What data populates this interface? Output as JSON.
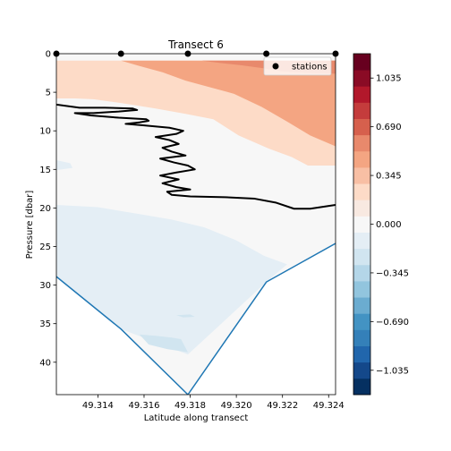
{
  "chart_data": {
    "type": "contour",
    "title": "Transect 6",
    "xlabel": "Latitude along transect",
    "ylabel": "Pressure [dbar]",
    "xlim": [
      49.3122,
      49.3243
    ],
    "ylim": [
      44.2,
      0
    ],
    "x_ticks": [
      49.314,
      49.316,
      49.318,
      49.32,
      49.322,
      49.324
    ],
    "x_tick_labels": [
      "49.314",
      "49.316",
      "49.318",
      "49.320",
      "49.322",
      "49.324"
    ],
    "y_ticks": [
      0,
      5,
      10,
      15,
      20,
      25,
      30,
      35,
      40
    ],
    "y_tick_labels": [
      "0",
      "5",
      "10",
      "15",
      "20",
      "25",
      "30",
      "35",
      "40"
    ],
    "grid": false,
    "legend": {
      "position": "top-right",
      "entries": [
        {
          "label": "stations",
          "marker": "circle",
          "color": "#000000"
        }
      ]
    },
    "colorbar": {
      "vmin": -1.2075,
      "vmax": 1.2075,
      "levels": 21,
      "tick_values": [
        1.035,
        0.69,
        0.345,
        0.0,
        -0.345,
        -0.69,
        -1.035
      ],
      "tick_labels": [
        "1.035",
        "0.690",
        "0.345",
        "0.000",
        "−0.345",
        "−0.690",
        "−1.035"
      ],
      "colormap": [
        "#053061",
        "#14488a",
        "#2166ac",
        "#3480b9",
        "#4393c3",
        "#6bacd0",
        "#92c5de",
        "#b4d6e8",
        "#d1e5f0",
        "#e4eef5",
        "#f7f7f7",
        "#f8e9e1",
        "#fddbc7",
        "#f8bfa4",
        "#f4a582",
        "#e8896c",
        "#d6604d",
        "#c43c3c",
        "#b2182b",
        "#8a0b25",
        "#67001f"
      ]
    },
    "stations": [
      {
        "x": 49.3122,
        "y": 0
      },
      {
        "x": 49.315,
        "y": 0
      },
      {
        "x": 49.3179,
        "y": 0
      },
      {
        "x": 49.3213,
        "y": 0
      },
      {
        "x": 49.3243,
        "y": 0
      }
    ],
    "bottom_profile": [
      {
        "x": 49.3122,
        "y": 28.9
      },
      {
        "x": 49.315,
        "y": 35.7
      },
      {
        "x": 49.3179,
        "y": 44.2
      },
      {
        "x": 49.3213,
        "y": 29.6
      },
      {
        "x": 49.3243,
        "y": 24.6
      }
    ],
    "zero_contour": [
      [
        49.3122,
        6.6
      ],
      [
        49.3132,
        7.0
      ],
      [
        49.3143,
        7.0
      ],
      [
        49.3155,
        7.1
      ],
      [
        49.3157,
        7.3
      ],
      [
        49.3149,
        7.5
      ],
      [
        49.3138,
        7.7
      ],
      [
        49.313,
        7.7
      ],
      [
        49.3137,
        8.0
      ],
      [
        49.3149,
        8.3
      ],
      [
        49.3161,
        8.5
      ],
      [
        49.3162,
        8.7
      ],
      [
        49.3158,
        8.9
      ],
      [
        49.3152,
        9.1
      ],
      [
        49.316,
        9.3
      ],
      [
        49.3171,
        9.6
      ],
      [
        49.3177,
        10.0
      ],
      [
        49.3174,
        10.4
      ],
      [
        49.3165,
        10.8
      ],
      [
        49.3171,
        11.2
      ],
      [
        49.3175,
        11.7
      ],
      [
        49.3168,
        12.2
      ],
      [
        49.3172,
        12.7
      ],
      [
        49.3178,
        13.2
      ],
      [
        49.3167,
        13.6
      ],
      [
        49.3173,
        14.1
      ],
      [
        49.3179,
        14.5
      ],
      [
        49.3182,
        15.0
      ],
      [
        49.3174,
        15.4
      ],
      [
        49.3167,
        15.8
      ],
      [
        49.3175,
        16.3
      ],
      [
        49.3168,
        16.8
      ],
      [
        49.3174,
        17.3
      ],
      [
        49.318,
        17.6
      ],
      [
        49.317,
        17.9
      ],
      [
        49.3172,
        18.3
      ],
      [
        49.318,
        18.5
      ],
      [
        49.3195,
        18.6
      ],
      [
        49.3208,
        18.8
      ],
      [
        49.3217,
        19.3
      ],
      [
        49.3225,
        20.1
      ],
      [
        49.3232,
        20.1
      ],
      [
        49.3243,
        19.6
      ]
    ],
    "filled_regions": [
      {
        "color": "#f7f7f7",
        "points": [
          [
            49.3122,
            0
          ],
          [
            49.3243,
            0
          ],
          [
            49.3243,
            24.6
          ],
          [
            49.3213,
            29.6
          ],
          [
            49.3179,
            44.2
          ],
          [
            49.315,
            35.7
          ],
          [
            49.3122,
            28.9
          ]
        ]
      },
      {
        "color": "#e4eef5",
        "points": [
          [
            49.3122,
            19.6
          ],
          [
            49.314,
            19.9
          ],
          [
            49.3158,
            20.8
          ],
          [
            49.3172,
            21.5
          ],
          [
            49.3186,
            22.5
          ],
          [
            49.32,
            24.2
          ],
          [
            49.3212,
            26.2
          ],
          [
            49.3222,
            27.3
          ],
          [
            49.3213,
            29.6
          ],
          [
            49.3179,
            39.0
          ],
          [
            49.315,
            35.7
          ],
          [
            49.3122,
            28.9
          ]
        ]
      },
      {
        "color": "#e4eef5",
        "points": [
          [
            49.3122,
            13.8
          ],
          [
            49.3128,
            14.2
          ],
          [
            49.3129,
            14.8
          ],
          [
            49.3122,
            15.1
          ]
        ]
      },
      {
        "color": "#d1e5f0",
        "points": [
          [
            49.3158,
            36.4
          ],
          [
            49.3166,
            36.6
          ],
          [
            49.3172,
            36.8
          ],
          [
            49.3176,
            37.0
          ],
          [
            49.3179,
            38.7
          ],
          [
            49.317,
            38.3
          ],
          [
            49.3162,
            37.7
          ]
        ]
      },
      {
        "color": "#d1e5f0",
        "points": [
          [
            49.3174,
            33.9
          ],
          [
            49.318,
            33.8
          ],
          [
            49.3182,
            34.1
          ],
          [
            49.3177,
            34.2
          ]
        ]
      },
      {
        "color": "#fddbc7",
        "points": [
          [
            49.3122,
            0.9
          ],
          [
            49.3243,
            0.9
          ],
          [
            49.3243,
            14.5
          ],
          [
            49.3231,
            14.5
          ],
          [
            49.3224,
            13.4
          ],
          [
            49.3214,
            12.3
          ],
          [
            49.3201,
            10.6
          ],
          [
            49.319,
            8.5
          ],
          [
            49.3178,
            7.8
          ],
          [
            49.3165,
            7.1
          ],
          [
            49.315,
            6.4
          ],
          [
            49.3138,
            5.9
          ],
          [
            49.313,
            5.8
          ],
          [
            49.3122,
            5.8
          ]
        ]
      },
      {
        "color": "#f4a582",
        "points": [
          [
            49.315,
            0.9
          ],
          [
            49.3243,
            0.9
          ],
          [
            49.3243,
            12.0
          ],
          [
            49.3232,
            10.6
          ],
          [
            49.3222,
            8.8
          ],
          [
            49.3211,
            6.9
          ],
          [
            49.3199,
            5.2
          ],
          [
            49.3188,
            4.3
          ],
          [
            49.3178,
            3.5
          ],
          [
            49.3168,
            2.4
          ],
          [
            49.3158,
            1.6
          ]
        ]
      },
      {
        "color": "#e8896c",
        "points": [
          [
            49.3185,
            0.9
          ],
          [
            49.3243,
            0.9
          ],
          [
            49.3243,
            2.6
          ],
          [
            49.3231,
            2.5
          ],
          [
            49.322,
            2.3
          ],
          [
            49.3212,
            1.9
          ],
          [
            49.3202,
            1.5
          ],
          [
            49.3193,
            1.2
          ]
        ]
      }
    ]
  }
}
